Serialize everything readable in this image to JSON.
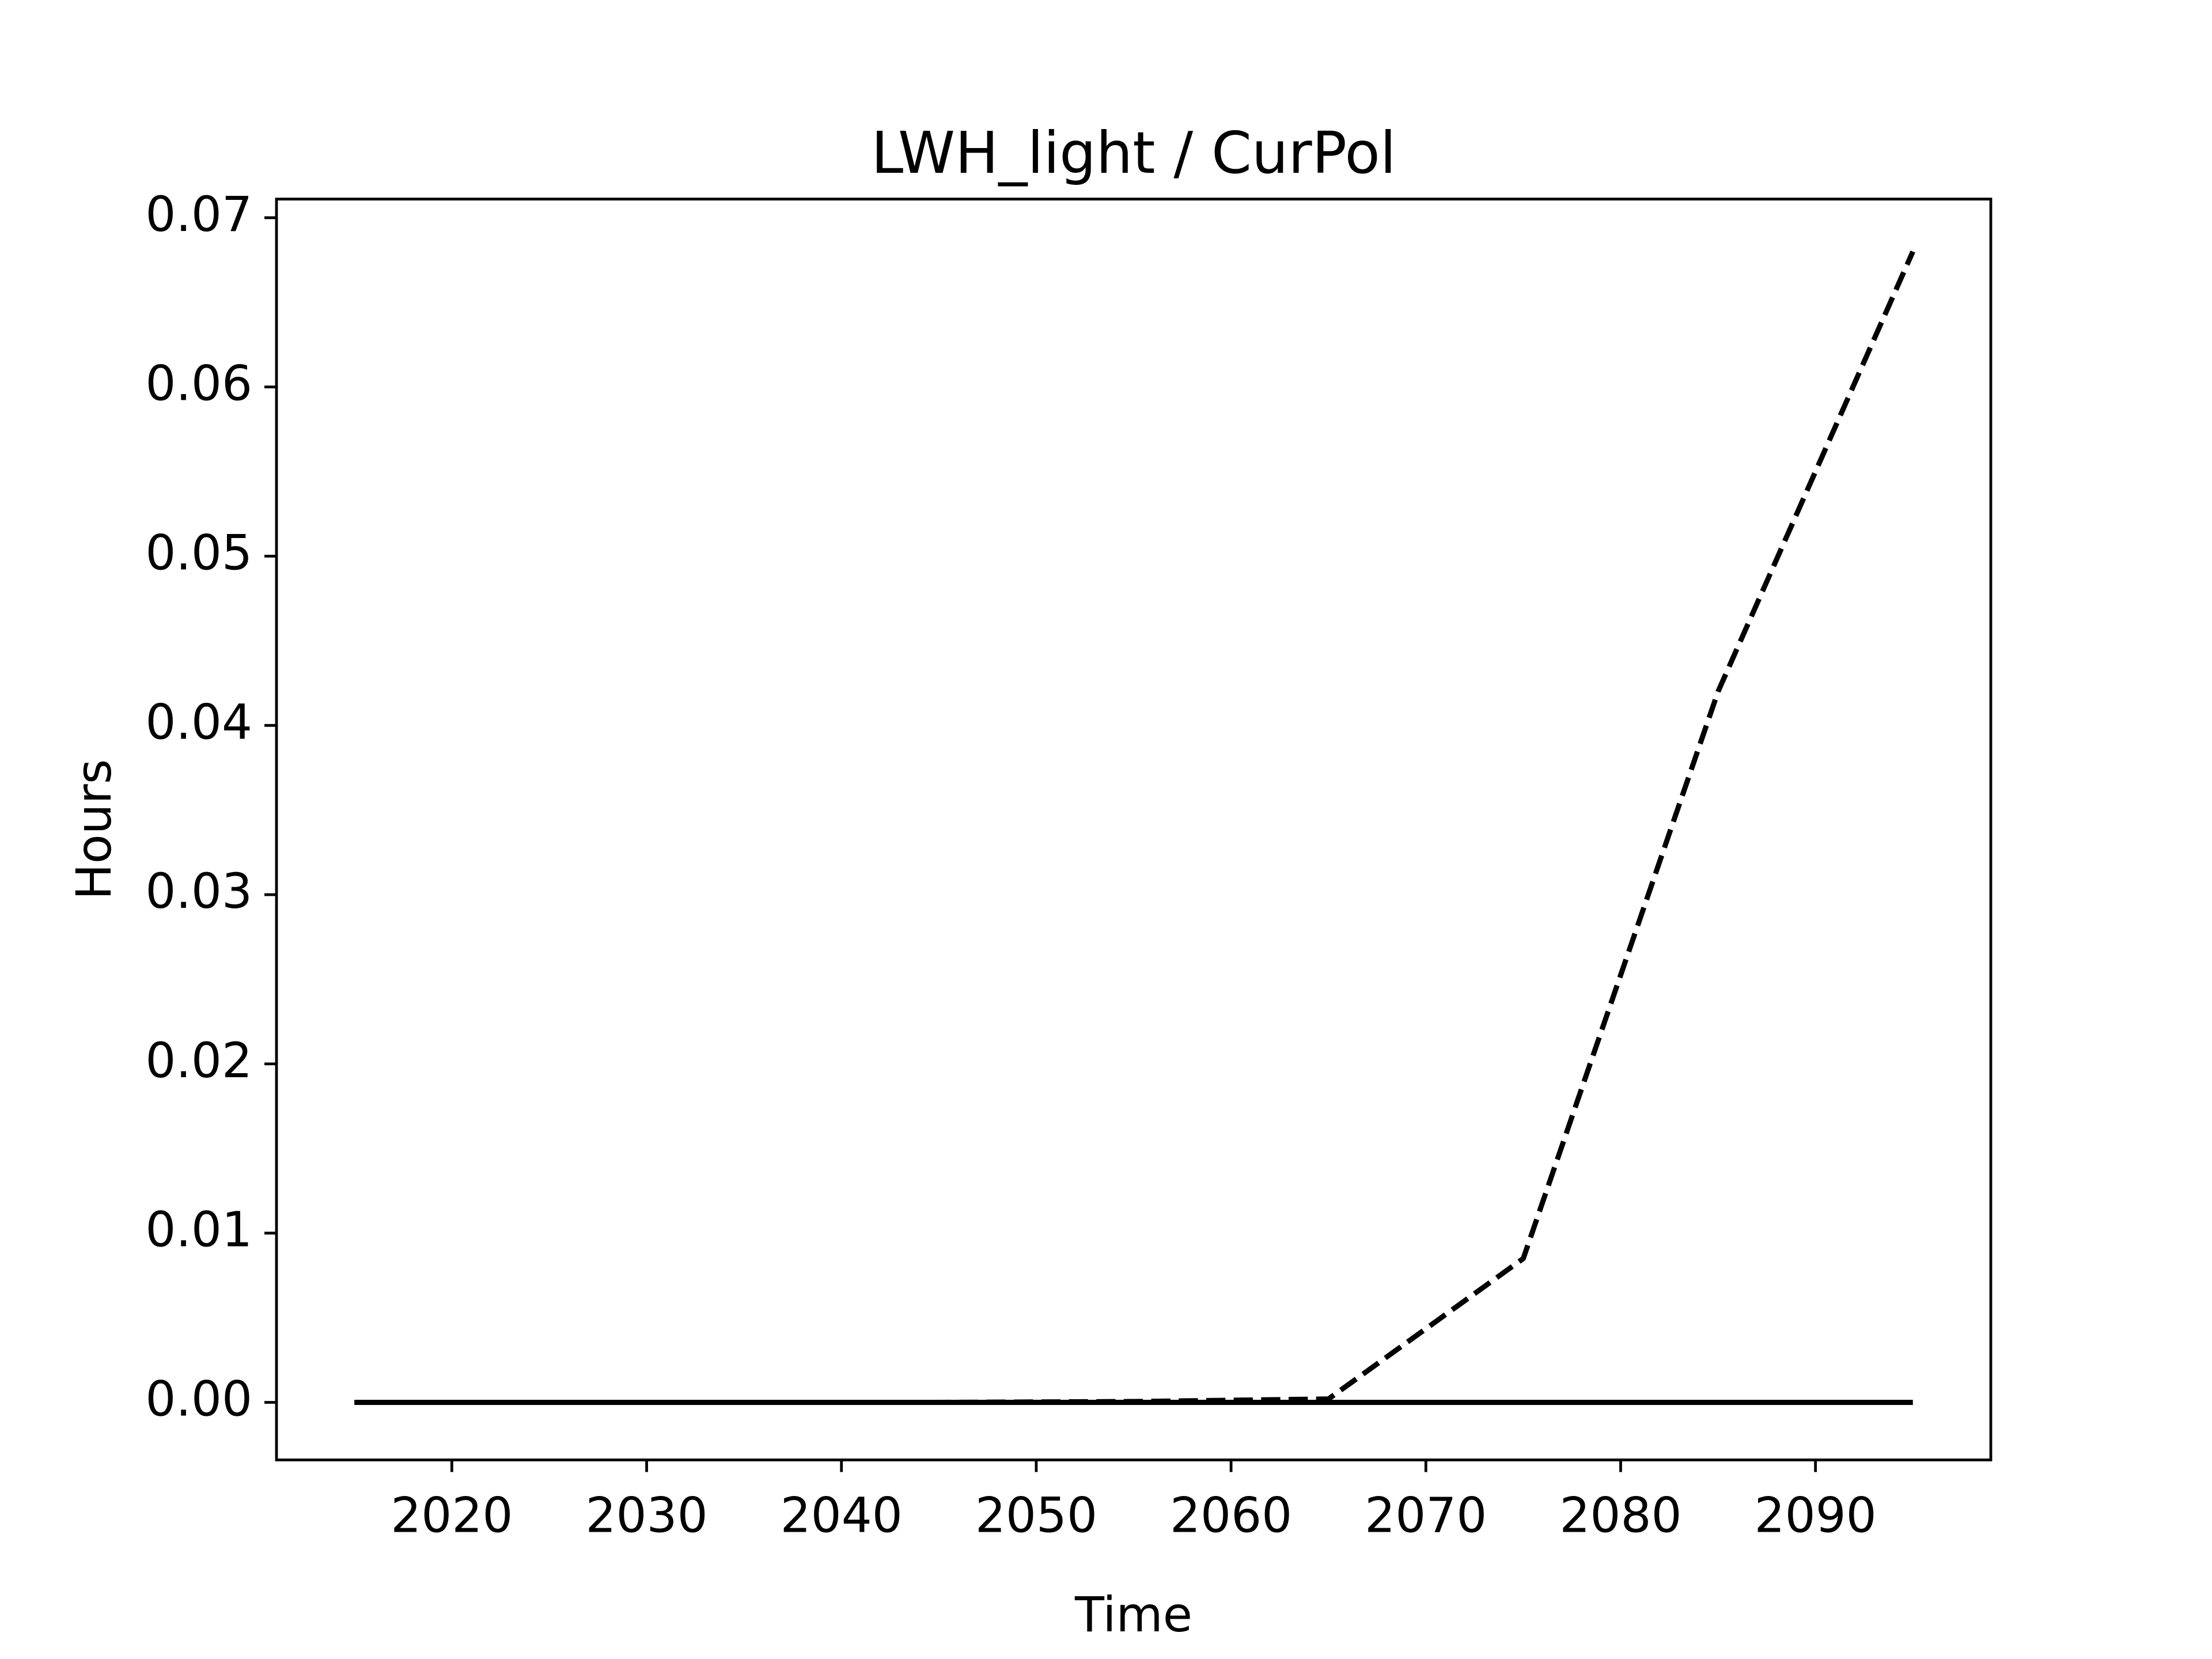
{
  "chart_data": {
    "type": "line",
    "title": "LWH_light / CurPol",
    "xlabel": "Time",
    "ylabel": "Hours",
    "x": [
      2015,
      2025,
      2035,
      2045,
      2055,
      2065,
      2075,
      2085,
      2095
    ],
    "series": [
      {
        "color": "#000000",
        "dashed": true,
        "values": [
          0,
          0,
          0,
          0,
          5e-05,
          0.0002,
          0.0085,
          0.042,
          0.068
        ]
      },
      {
        "color": "#000000",
        "dashed": false,
        "values": [
          0,
          0,
          0,
          0,
          0,
          0,
          0,
          0,
          0
        ]
      }
    ],
    "xlim": [
      2011,
      2099
    ],
    "xticks": [
      2020,
      2030,
      2040,
      2050,
      2060,
      2070,
      2080,
      2090
    ],
    "ylim": [
      -0.0034,
      0.0711
    ],
    "yticks": [
      {
        "value": 0,
        "label": "0.00"
      },
      {
        "value": 0.01,
        "label": "0.01"
      },
      {
        "value": 0.02,
        "label": "0.02"
      },
      {
        "value": 0.03,
        "label": "0.03"
      },
      {
        "value": 0.04,
        "label": "0.04"
      },
      {
        "value": 0.05,
        "label": "0.05"
      },
      {
        "value": 0.06,
        "label": "0.06"
      },
      {
        "value": 0.07,
        "label": "0.07"
      }
    ],
    "grid": false
  }
}
